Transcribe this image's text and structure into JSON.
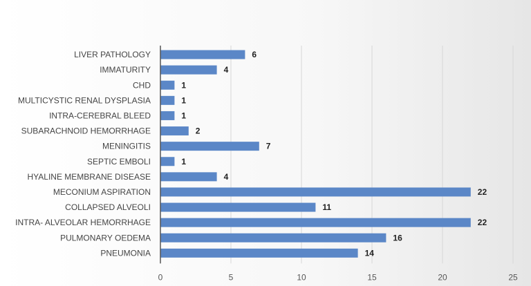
{
  "chart_data": {
    "type": "bar",
    "orientation": "horizontal",
    "title": "",
    "xlabel": "",
    "ylabel": "",
    "categories": [
      "LIVER PATHOLOGY",
      "IMMATURITY",
      "CHD",
      "MULTICYSTIC RENAL DYSPLASIA",
      "INTRA-CEREBRAL BLEED",
      "SUBARACHNOID HEMORRHAGE",
      "MENINGITIS",
      "SEPTIC EMBOLI",
      "HYALINE MEMBRANE DISEASE",
      "MECONIUM ASPIRATION",
      "COLLAPSED ALVEOLI",
      "INTRA- ALVEOLAR HEMORRHAGE",
      "PULMONARY OEDEMA",
      "PNEUMONIA"
    ],
    "values": [
      6,
      4,
      1,
      1,
      1,
      2,
      7,
      1,
      4,
      22,
      11,
      22,
      16,
      14
    ],
    "xlim": [
      0,
      25
    ],
    "xticks": [
      0,
      5,
      10,
      15,
      20,
      25
    ],
    "grid": "vertical",
    "legend": "none",
    "bar_color": "#5b87c7",
    "data_labels": true
  }
}
